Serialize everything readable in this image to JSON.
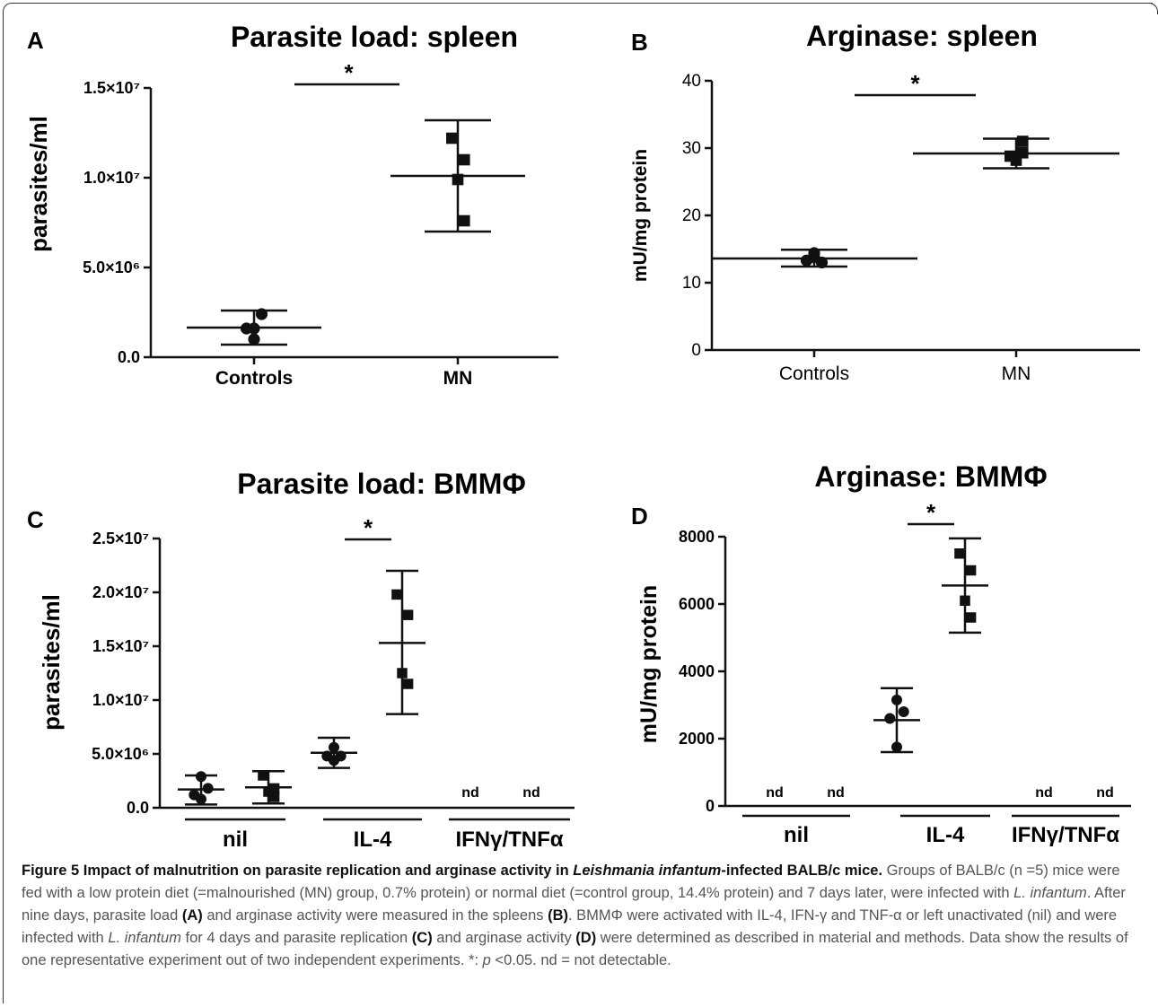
{
  "chart_data": [
    {
      "panel": "A",
      "type": "scatter",
      "title": "Parasite load: spleen",
      "ylabel": "parasites/ml",
      "ylim": [
        0,
        15000000
      ],
      "ytick_values": [
        0,
        5000000,
        10000000,
        15000000
      ],
      "yticks": [
        "0.0",
        "5.0×10⁶",
        "1.0×10⁷",
        "1.5×10⁷"
      ],
      "categories": [
        "Controls",
        "MN"
      ],
      "groups": [
        {
          "category": "Controls",
          "marker": "circle",
          "points": [
            1600000,
            2400000,
            1600000,
            1000000
          ],
          "mean": 1650000,
          "sd_low": 700000,
          "sd_high": 2600000
        },
        {
          "category": "MN",
          "marker": "square",
          "points": [
            12200000,
            11000000,
            9900000,
            7600000
          ],
          "mean": 10100000,
          "sd_low": 7000000,
          "sd_high": 13200000
        }
      ],
      "significance": [
        {
          "from": 0,
          "to": 1,
          "label": "*"
        }
      ]
    },
    {
      "panel": "B",
      "type": "scatter",
      "title": "Arginase: spleen",
      "ylabel": "mU/mg protein",
      "ylim": [
        0,
        40
      ],
      "ytick_values": [
        0,
        10,
        20,
        30,
        40
      ],
      "yticks": [
        "0",
        "10",
        "20",
        "30",
        "40"
      ],
      "categories": [
        "Controls",
        "MN"
      ],
      "groups": [
        {
          "category": "Controls",
          "marker": "circle",
          "points": [
            13.8,
            13.0,
            13.3,
            14.4
          ],
          "mean": 13.6,
          "sd_low": 12.4,
          "sd_high": 14.9
        },
        {
          "category": "MN",
          "marker": "square",
          "points": [
            28.8,
            31.0,
            28.2,
            29.3
          ],
          "mean": 29.2,
          "sd_low": 27.0,
          "sd_high": 31.4
        }
      ],
      "significance": [
        {
          "from": 0,
          "to": 1,
          "label": "*"
        }
      ]
    },
    {
      "panel": "C",
      "type": "scatter",
      "title": "Parasite load: BMMΦ",
      "ylabel": "parasites/ml",
      "ylim": [
        0,
        25000000
      ],
      "ytick_values": [
        0,
        5000000,
        10000000,
        15000000,
        20000000,
        25000000
      ],
      "yticks": [
        "0.0",
        "5.0×10⁶",
        "1.0×10⁷",
        "1.5×10⁷",
        "2.0×10⁷",
        "2.5×10⁷"
      ],
      "group_labels": [
        "nil",
        "IL-4",
        "IFNγ/TNFα"
      ],
      "groups": [
        {
          "group": "nil",
          "marker": "circle",
          "points": [
            2900000,
            1800000,
            1200000,
            800000
          ],
          "mean": 1700000,
          "sd_low": 300000,
          "sd_high": 3000000
        },
        {
          "group": "nil",
          "marker": "square",
          "points": [
            3000000,
            1800000,
            1500000,
            1000000
          ],
          "mean": 1900000,
          "sd_low": 400000,
          "sd_high": 3400000
        },
        {
          "group": "IL-4",
          "marker": "circle",
          "points": [
            5600000,
            4800000,
            4800000,
            4400000
          ],
          "mean": 5100000,
          "sd_low": 3700000,
          "sd_high": 6500000
        },
        {
          "group": "IL-4",
          "marker": "square",
          "points": [
            19800000,
            17900000,
            12500000,
            11500000
          ],
          "mean": 15300000,
          "sd_low": 8700000,
          "sd_high": 22000000
        },
        {
          "group": "IFNγ/TNFα",
          "marker": "none",
          "note": "nd"
        },
        {
          "group": "IFNγ/TNFα",
          "marker": "none",
          "note": "nd"
        }
      ],
      "significance": [
        {
          "from": 2,
          "to": 3,
          "label": "*"
        }
      ]
    },
    {
      "panel": "D",
      "type": "scatter",
      "title": "Arginase: BMMΦ",
      "ylabel": "mU/mg protein",
      "ylim": [
        0,
        8000
      ],
      "ytick_values": [
        0,
        2000,
        4000,
        6000,
        8000
      ],
      "yticks": [
        "0",
        "2000",
        "4000",
        "6000",
        "8000"
      ],
      "group_labels": [
        "nil",
        "IL-4",
        "IFNγ/TNFα"
      ],
      "groups": [
        {
          "group": "nil",
          "marker": "none",
          "note": "nd"
        },
        {
          "group": "nil",
          "marker": "none",
          "note": "nd"
        },
        {
          "group": "IL-4",
          "marker": "circle",
          "points": [
            3150.0,
            2800,
            2600,
            1750
          ],
          "mean": 2550,
          "sd_low": 1600,
          "sd_high": 3500
        },
        {
          "group": "IL-4",
          "marker": "square",
          "points": [
            7500,
            7000,
            6100,
            5600
          ],
          "mean": 6550,
          "sd_low": 5150,
          "sd_high": 7950
        },
        {
          "group": "IFNγ/TNFα",
          "marker": "none",
          "note": "nd"
        },
        {
          "group": "IFNγ/TNFα",
          "marker": "none",
          "note": "nd"
        }
      ],
      "significance": [
        {
          "from": 2,
          "to": 3,
          "label": "*"
        }
      ]
    }
  ],
  "caption": {
    "figure_label": "Figure 5 Impact of malnutrition on parasite replication and arginase activity in ",
    "figure_species": "Leishmania infantum",
    "figure_tail": "-infected BALB/c mice.",
    "s1": " Groups of BALB/c (n =5) mice were fed with a low protein diet (=malnourished (MN) group, 0.7% protein) or normal diet (=control group, 14.4% protein) and 7 days later, were infected with ",
    "species_short": "L. infantum",
    "s2": ". After nine days, parasite load ",
    "refA": "(A)",
    "s3": " and arginase activity were measured in the spleens ",
    "refB": "(B)",
    "s4": ". BMMΦ were activated with IL-4, IFN-γ and TNF-α or left unactivated (nil) and were infected with ",
    "s5": " for 4 days and parasite replication ",
    "refC": "(C)",
    "s6": " and arginase activity ",
    "refD": "(D)",
    "s7": " were determined as described in material and methods. Data show the results of one representative experiment out of two independent experiments. *: ",
    "p_italic": "p",
    "s8": " <0.05. nd = not detectable."
  }
}
